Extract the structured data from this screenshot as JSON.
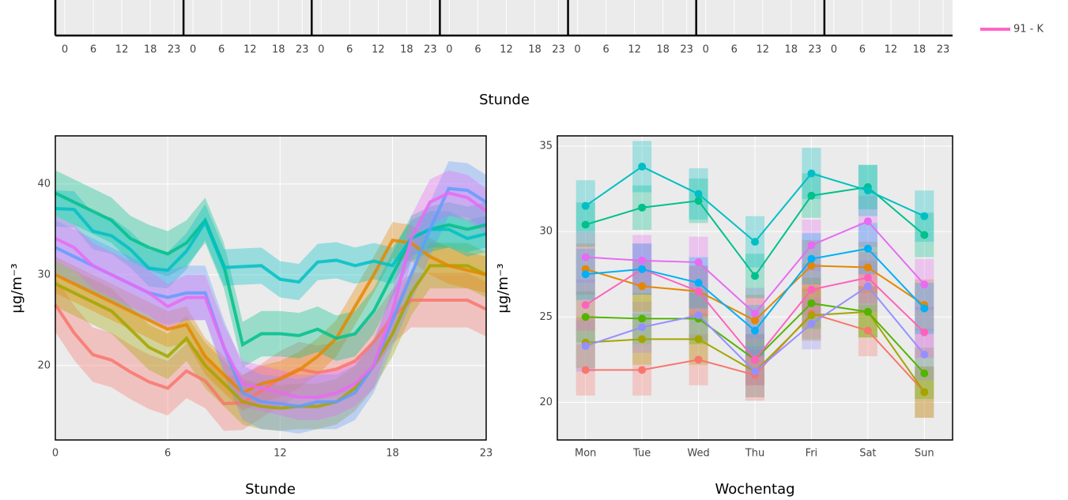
{
  "chart_data": [
    {
      "type": "facet-strip",
      "x_label": "Stunde",
      "panels": [
        {
          "xlim": [
            -2,
            25
          ],
          "xticks": [
            0,
            6,
            12,
            18,
            23
          ]
        },
        {
          "xlim": [
            -2,
            25
          ],
          "xticks": [
            0,
            6,
            12,
            18,
            23
          ]
        },
        {
          "xlim": [
            -2,
            25
          ],
          "xticks": [
            0,
            6,
            12,
            18,
            23
          ]
        },
        {
          "xlim": [
            -2,
            25
          ],
          "xticks": [
            0,
            6,
            12,
            18,
            23
          ]
        },
        {
          "xlim": [
            -2,
            25
          ],
          "xticks": [
            0,
            6,
            12,
            18,
            23
          ]
        },
        {
          "xlim": [
            -2,
            25
          ],
          "xticks": [
            0,
            6,
            12,
            18,
            23
          ]
        },
        {
          "xlim": [
            -2,
            25
          ],
          "xticks": [
            0,
            6,
            12,
            18,
            23
          ]
        }
      ],
      "series": [
        {
          "name": "91 - K",
          "color": "#ff66c8"
        }
      ]
    },
    {
      "type": "band-line",
      "x_label": "Stunde",
      "y_label": "µg/m⁻³",
      "x": [
        0,
        1,
        2,
        3,
        4,
        5,
        6,
        7,
        8,
        9,
        10,
        11,
        12,
        13,
        14,
        15,
        16,
        17,
        18,
        19,
        20,
        21,
        22,
        23
      ],
      "xlim": [
        0,
        23
      ],
      "xticks": [
        0,
        6,
        12,
        18,
        23
      ],
      "ylim": [
        11.8,
        45.3
      ],
      "yticks": [
        20,
        30,
        40
      ],
      "grid": true,
      "series": [
        {
          "color": "#f8766d",
          "error": 3,
          "values": [
            26.7,
            23.6,
            21.2,
            20.6,
            19.3,
            18.2,
            17.5,
            19.4,
            18.3,
            15.8,
            15.9,
            17.2,
            18.6,
            19.6,
            19.2,
            19.6,
            20.5,
            22.6,
            25.4,
            27.2,
            27.2,
            27.2,
            27.2,
            26.2
          ]
        },
        {
          "color": "#a3a500",
          "error": 2.5,
          "values": [
            29,
            28,
            27,
            26,
            24,
            22,
            21,
            23,
            20,
            18,
            16,
            15.5,
            15.3,
            15.5,
            15.5,
            16,
            17.5,
            20,
            23.5,
            28,
            31,
            31,
            31,
            30
          ]
        },
        {
          "color": "#e58700",
          "error": 2,
          "values": [
            30,
            29,
            28,
            27,
            26,
            25,
            24,
            24.5,
            21,
            19,
            17,
            18,
            18.5,
            19.5,
            21,
            23,
            26.5,
            30,
            33.8,
            33.5,
            32,
            31,
            30.5,
            30
          ]
        },
        {
          "color": "#00c08b",
          "error": 2.5,
          "values": [
            39,
            38,
            37,
            36,
            34,
            33,
            32.3,
            33.5,
            36,
            31,
            22.3,
            23.5,
            23.5,
            23.3,
            24,
            23,
            23.5,
            26,
            30,
            34,
            35,
            35.5,
            35,
            35.5
          ]
        },
        {
          "color": "#00bfc4",
          "error": 2,
          "values": [
            37.3,
            37.2,
            34.8,
            34.3,
            32.8,
            30.7,
            30.5,
            32.6,
            35.8,
            30.8,
            30.9,
            31,
            29.5,
            29.2,
            31.4,
            31.6,
            31,
            31.5,
            31,
            34,
            35,
            35,
            34,
            34.5
          ]
        },
        {
          "color": "#619cff",
          "error": 3,
          "values": [
            33,
            32,
            31,
            30,
            29,
            28,
            27.5,
            28,
            28,
            22,
            17,
            16,
            15.8,
            15.5,
            16,
            16,
            17,
            20,
            25,
            30,
            35,
            39.5,
            39.3,
            38
          ]
        },
        {
          "color": "#e76bf3",
          "error": 2.5,
          "values": [
            34,
            33,
            31,
            30,
            29,
            28,
            26.5,
            27.5,
            27.5,
            22,
            18,
            17.5,
            17,
            16.5,
            16.5,
            17,
            18,
            20,
            26,
            34,
            38,
            39,
            38.5,
            37
          ]
        }
      ]
    },
    {
      "type": "errorbox-line",
      "x_label": "Wochentag",
      "y_label": "µg/m⁻³",
      "categories": [
        "Mon",
        "Tue",
        "Wed",
        "Thu",
        "Fri",
        "Sat",
        "Sun"
      ],
      "ylim": [
        17.8,
        35.6
      ],
      "yticks": [
        20,
        25,
        30,
        35
      ],
      "grid": true,
      "series": [
        {
          "color": "#f8766d",
          "error": 1.5,
          "values": [
            21.9,
            21.9,
            22.5,
            21.6,
            25.2,
            24.2,
            20.6
          ]
        },
        {
          "color": "#a3a500",
          "error": 1.5,
          "values": [
            23.5,
            23.7,
            23.7,
            21.8,
            25.1,
            25.3,
            20.6
          ]
        },
        {
          "color": "#53b400",
          "error": 1.5,
          "values": [
            25.0,
            24.9,
            24.9,
            22.5,
            25.8,
            25.3,
            21.7
          ]
        },
        {
          "color": "#9590ff",
          "error": 1.5,
          "values": [
            23.3,
            24.4,
            25.1,
            21.8,
            24.6,
            26.8,
            22.8
          ]
        },
        {
          "color": "#e58700",
          "error": 1.5,
          "values": [
            27.8,
            26.8,
            26.5,
            24.8,
            28.0,
            27.9,
            25.7
          ]
        },
        {
          "color": "#ff62bc",
          "error": 1.5,
          "values": [
            25.7,
            27.8,
            26.5,
            22.5,
            26.6,
            27.3,
            24.1
          ]
        },
        {
          "color": "#e76bf3",
          "error": 1.5,
          "values": [
            28.5,
            28.3,
            28.2,
            25.2,
            29.2,
            30.6,
            26.9
          ]
        },
        {
          "color": "#00b0f6",
          "error": 1.5,
          "values": [
            27.5,
            27.8,
            27.0,
            24.2,
            28.4,
            29.0,
            25.5
          ]
        },
        {
          "color": "#00c08b",
          "error": 1.3,
          "values": [
            30.4,
            31.4,
            31.8,
            27.4,
            32.1,
            32.6,
            29.8
          ]
        },
        {
          "color": "#00bfc4",
          "error": 1.5,
          "values": [
            31.5,
            33.8,
            32.2,
            29.4,
            33.4,
            32.4,
            30.9
          ]
        }
      ]
    }
  ]
}
